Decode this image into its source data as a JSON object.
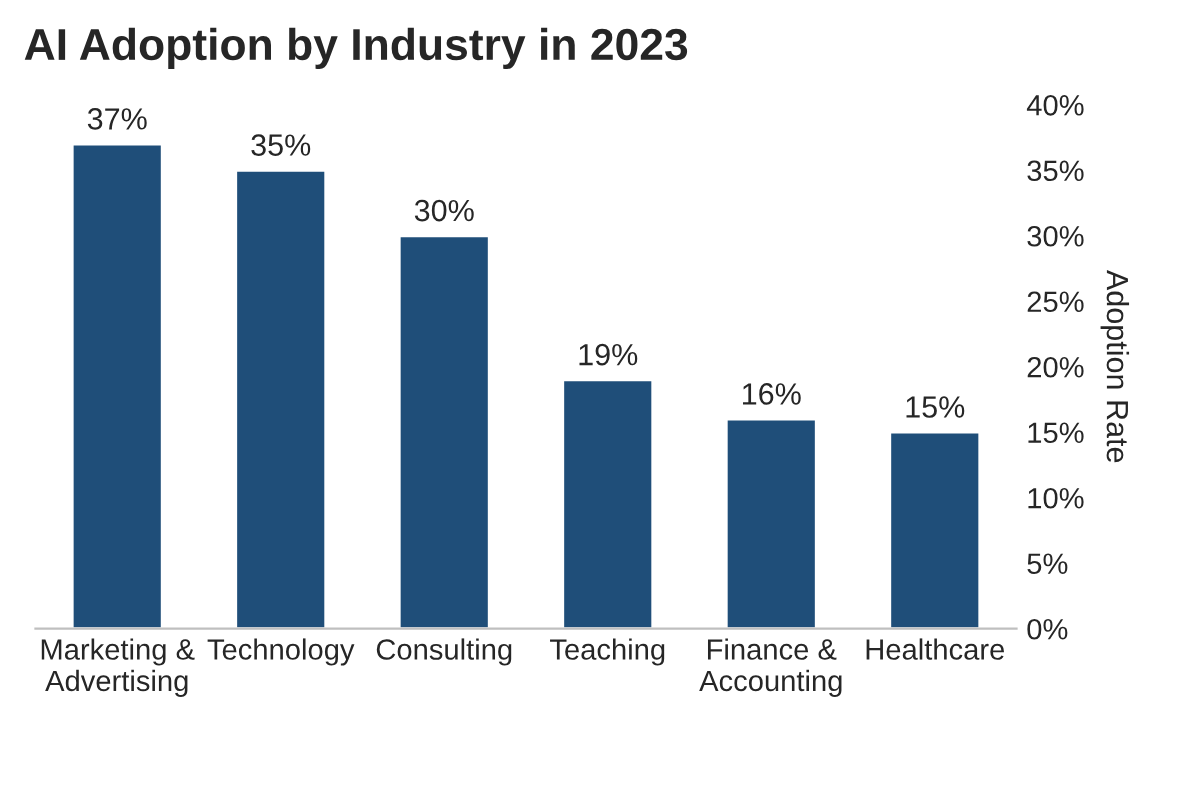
{
  "chart_data": {
    "type": "bar",
    "title": "AI Adoption by Industry in 2023",
    "ylabel": "Adoption Rate",
    "categories": [
      "Marketing &\nAdvertising",
      "Technology",
      "Consulting",
      "Teaching",
      "Finance &\nAccounting",
      "Healthcare"
    ],
    "values": [
      37,
      35,
      30,
      19,
      16,
      15
    ],
    "value_labels": [
      "37%",
      "35%",
      "30%",
      "19%",
      "16%",
      "15%"
    ],
    "color": "#1f4e79",
    "ylim": [
      0,
      40
    ],
    "yticks": [
      {
        "value": 0,
        "label": "0%"
      },
      {
        "value": 5,
        "label": "5%"
      },
      {
        "value": 10,
        "label": "10%"
      },
      {
        "value": 15,
        "label": "15%"
      },
      {
        "value": 20,
        "label": "20%"
      },
      {
        "value": 25,
        "label": "25%"
      },
      {
        "value": 30,
        "label": "30%"
      },
      {
        "value": 35,
        "label": "35%"
      },
      {
        "value": 40,
        "label": "40%"
      }
    ],
    "grid": false,
    "legend": false
  }
}
